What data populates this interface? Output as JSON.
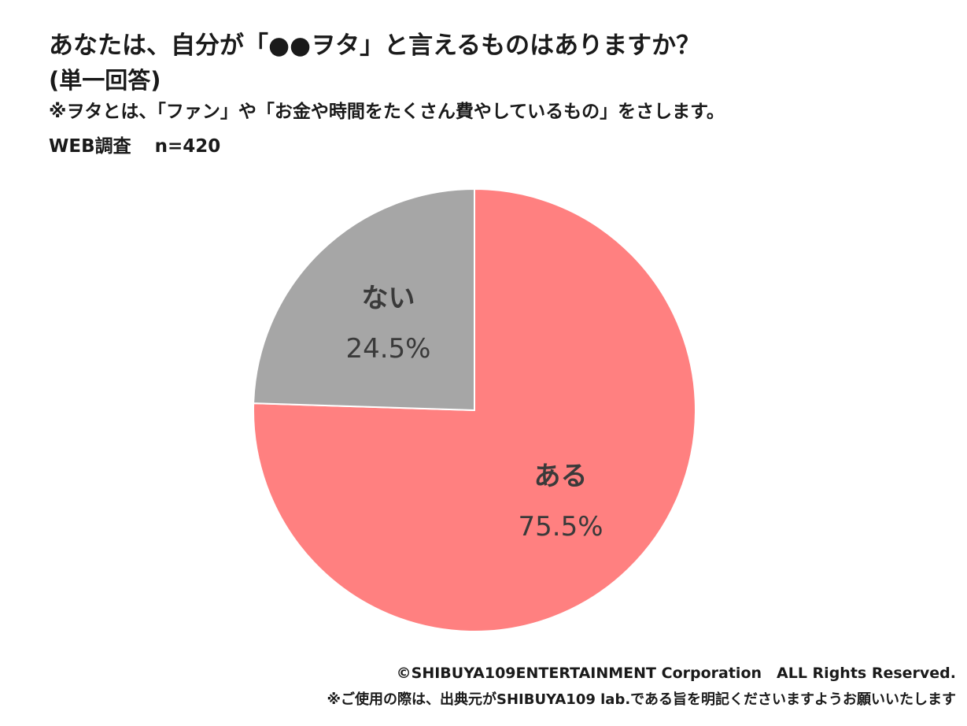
{
  "chart_data": {
    "type": "pie",
    "title": "あなたは、自分が「●●ヲタ」と言えるものはありますか？",
    "subtitle": "(単一回答)",
    "note": "※ヲタとは、「ファン」や「お金や時間をたくさん費やしているもの」をさします。",
    "survey_method": "WEB調査",
    "sample_size": "n=420",
    "slices": [
      {
        "label": "ある",
        "value": 75.5,
        "value_label": "75.5%",
        "color": "#ff8080"
      },
      {
        "label": "ない",
        "value": 24.5,
        "value_label": "24.5%",
        "color": "#a6a6a6"
      }
    ],
    "start": "12 o'clock",
    "direction": "clockwise"
  },
  "footer": {
    "copyright": "©SHIBUYA109ENTERTAINMENT Corporation　ALL Rights Reserved.",
    "usage": "※ご使用の際は、出典元がSHIBUYA109 lab.である旨を明記くださいますようお願いいたします"
  }
}
